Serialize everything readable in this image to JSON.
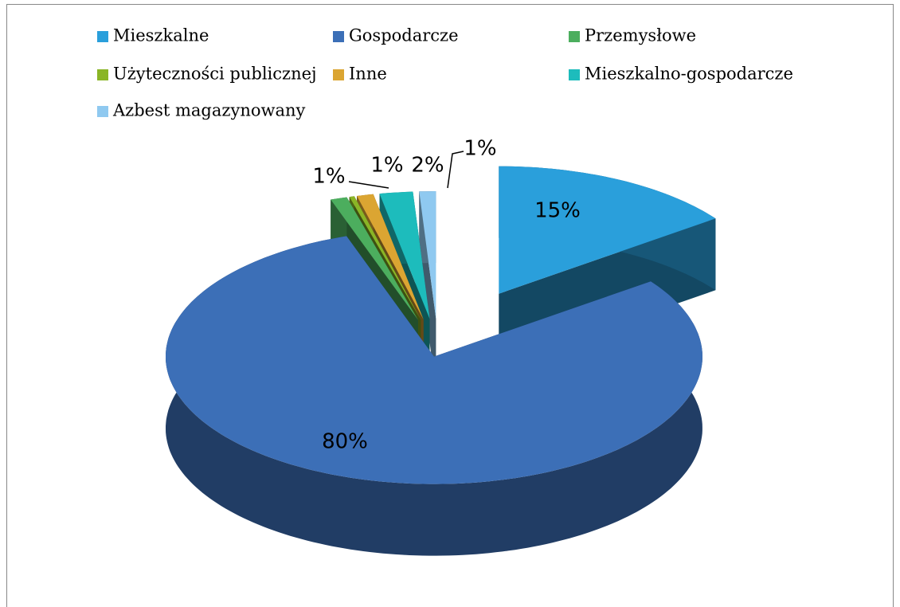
{
  "chart_data": {
    "type": "pie3d",
    "categories": [
      "Mieszkalne",
      "Gospodarcze",
      "Przemysłowe",
      "Użyteczności publicznej",
      "Inne",
      "Mieszkalno-gospodarcze",
      "Azbest magazynowany"
    ],
    "values": [
      15,
      80,
      1,
      0.3,
      1,
      2,
      1
    ],
    "value_labels": [
      "15%",
      "80%",
      "1%",
      null,
      "1%",
      "2%",
      "1%"
    ],
    "colors": [
      "#2a9fdb",
      "#3c6fb7",
      "#4cae5e",
      "#8ab526",
      "#dba532",
      "#1dbcbc",
      "#8fc9f0"
    ],
    "legend": "top"
  }
}
